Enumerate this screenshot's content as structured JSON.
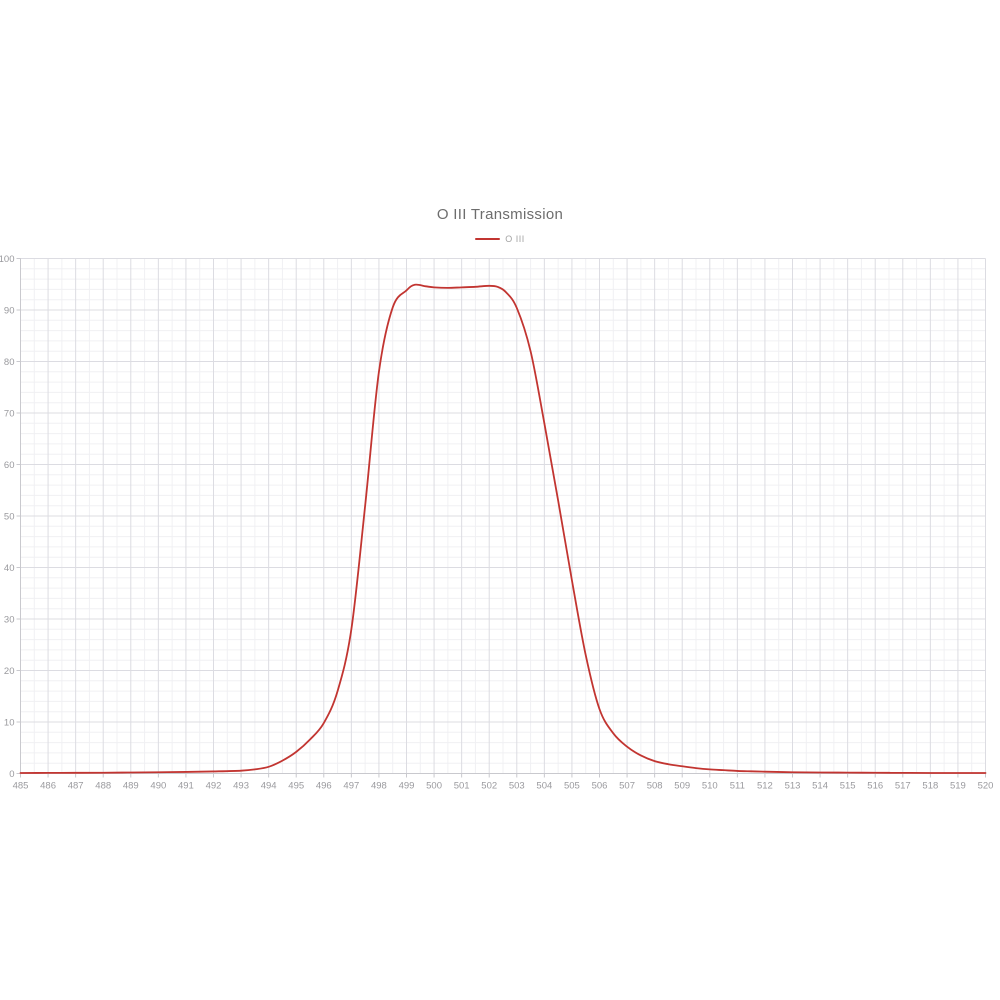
{
  "title": {
    "text": "O III Transmission"
  },
  "legend": {
    "items": [
      {
        "label": "O III",
        "color": "#c23531"
      }
    ]
  },
  "chart_data": {
    "type": "line",
    "title": "O III Transmission",
    "xlabel": "",
    "ylabel": "",
    "xlim": [
      485,
      520
    ],
    "ylim": [
      0,
      100
    ],
    "grid": true,
    "legend_position": "top-center",
    "x_ticks": [
      485,
      486,
      487,
      488,
      489,
      490,
      491,
      492,
      493,
      494,
      495,
      496,
      497,
      498,
      499,
      500,
      501,
      502,
      503,
      504,
      505,
      506,
      507,
      508,
      509,
      510,
      511,
      512,
      513,
      514,
      515,
      516,
      517,
      518,
      519,
      520
    ],
    "y_ticks": [
      0,
      10,
      20,
      30,
      40,
      50,
      60,
      70,
      80,
      90,
      100
    ],
    "x_minor_step": 0.5,
    "y_minor_step": 2,
    "theme": {
      "major_grid_color": "#dcdce2",
      "minor_grid_color": "#f0f0f3",
      "axis_line_color": "#c9c9ce",
      "tick_color": "#c9c9ce",
      "label_color": "#9a9a9e"
    },
    "series": [
      {
        "name": "O III",
        "color": "#c23531",
        "points": [
          [
            485,
            0.1
          ],
          [
            486,
            0.12
          ],
          [
            487,
            0.13
          ],
          [
            488,
            0.15
          ],
          [
            489,
            0.2
          ],
          [
            490,
            0.25
          ],
          [
            491,
            0.3
          ],
          [
            492,
            0.4
          ],
          [
            493,
            0.55
          ],
          [
            493.5,
            0.8
          ],
          [
            494,
            1.3
          ],
          [
            494.5,
            2.5
          ],
          [
            495,
            4.2
          ],
          [
            495.5,
            6.6
          ],
          [
            496,
            9.8
          ],
          [
            496.5,
            16
          ],
          [
            497,
            28
          ],
          [
            497.5,
            52
          ],
          [
            498,
            78
          ],
          [
            498.5,
            90.5
          ],
          [
            499,
            93.8
          ],
          [
            499.3,
            94.9
          ],
          [
            499.7,
            94.6
          ],
          [
            500,
            94.4
          ],
          [
            500.5,
            94.3
          ],
          [
            501,
            94.4
          ],
          [
            501.5,
            94.5
          ],
          [
            502,
            94.7
          ],
          [
            502.3,
            94.5
          ],
          [
            502.6,
            93.5
          ],
          [
            503,
            90.4
          ],
          [
            503.5,
            82
          ],
          [
            504,
            68
          ],
          [
            504.5,
            53
          ],
          [
            505,
            37.5
          ],
          [
            505.5,
            23
          ],
          [
            506,
            12.5
          ],
          [
            506.5,
            7.8
          ],
          [
            507,
            5.2
          ],
          [
            507.5,
            3.5
          ],
          [
            508,
            2.4
          ],
          [
            508.5,
            1.8
          ],
          [
            509,
            1.4
          ],
          [
            509.5,
            1.05
          ],
          [
            510,
            0.8
          ],
          [
            510.5,
            0.65
          ],
          [
            511,
            0.5
          ],
          [
            511.5,
            0.42
          ],
          [
            512,
            0.35
          ],
          [
            513,
            0.25
          ],
          [
            514,
            0.2
          ],
          [
            515,
            0.17
          ],
          [
            516,
            0.14
          ],
          [
            517,
            0.12
          ],
          [
            518,
            0.1
          ],
          [
            519,
            0.1
          ],
          [
            520,
            0.1
          ]
        ]
      }
    ]
  }
}
